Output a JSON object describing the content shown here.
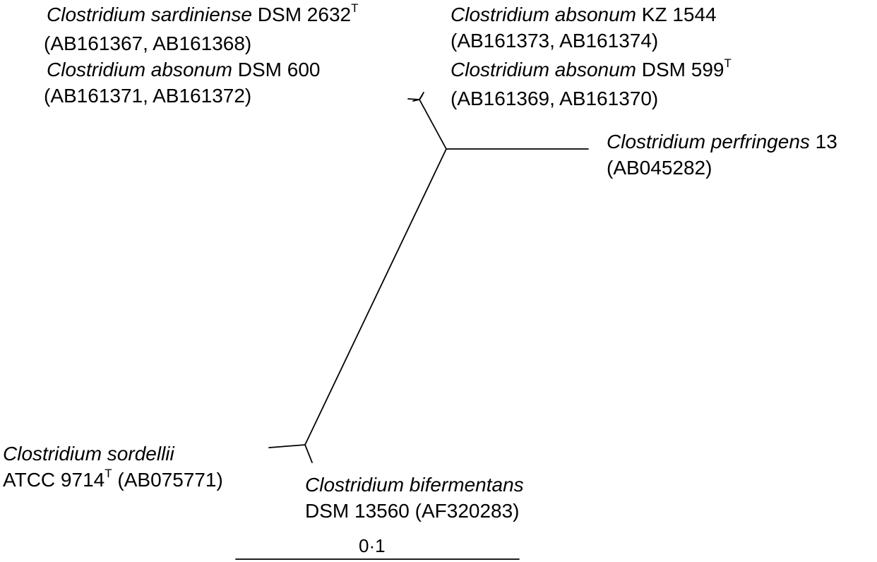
{
  "taxa": {
    "sardiniense": {
      "species": "Clostridium sardiniense",
      "strain": " DSM 2632",
      "type_strain_mark": "T",
      "accessions": "(AB161367, AB161368)"
    },
    "absonum_dsm600": {
      "species": "Clostridium absonum",
      "strain": " DSM 600",
      "accessions": "(AB161371, AB161372)"
    },
    "absonum_kz1544": {
      "species": "Clostridium absonum",
      "strain": " KZ 1544",
      "accessions": "(AB161373, AB161374)"
    },
    "absonum_dsm599": {
      "species": "Clostridium absonum",
      "strain": " DSM 599",
      "type_strain_mark": "T",
      "accessions": "(AB161369, AB161370)"
    },
    "perfringens": {
      "species": "Clostridium perfringens",
      "strain": " 13",
      "accessions": "(AB045282)"
    },
    "sordellii": {
      "species": "Clostridium sordellii",
      "strain": "ATCC 9714",
      "type_strain_mark": "T",
      "accessions": " (AB075771)"
    },
    "bifermentans": {
      "species": "Clostridium bifermentans",
      "strain": "DSM 13560 (AF320283)"
    }
  },
  "scale_bar": {
    "label": "0·1"
  },
  "colors": {
    "line": "#000000",
    "background": "#ffffff"
  }
}
